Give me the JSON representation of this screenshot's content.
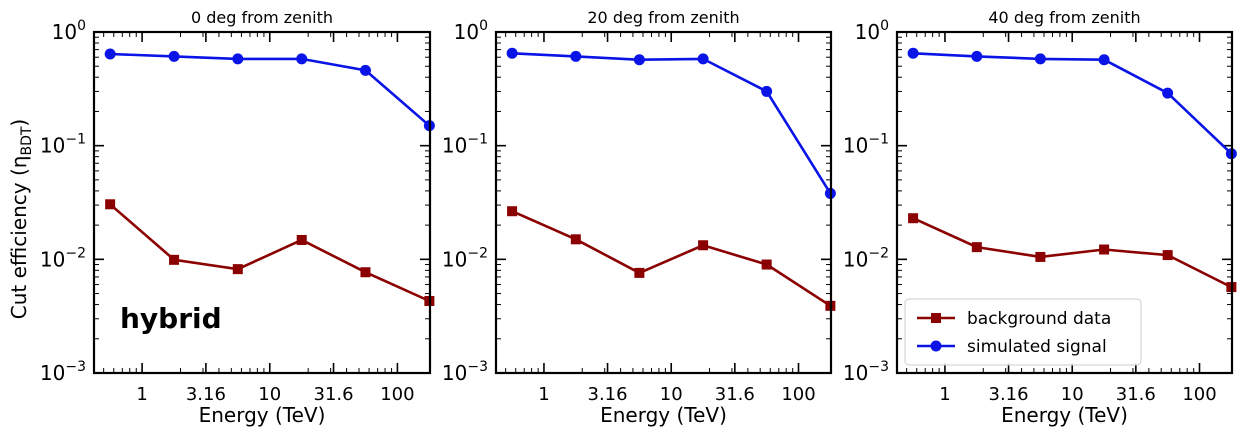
{
  "figure": {
    "ylabel_main": "Cut efficiency (η",
    "ylabel_sub": "BDT",
    "ylabel_close": ")",
    "annotation": "hybrid"
  },
  "chart_data": [
    {
      "type": "line",
      "title": "0 deg from zenith",
      "xlabel": "Energy (TeV)",
      "ylabel": "Cut efficiency (ηBDT)",
      "xscale": "log",
      "yscale": "log",
      "xlim": [
        0.42,
        180
      ],
      "ylim": [
        0.001,
        1
      ],
      "xticks": [
        1,
        3.16,
        10,
        31.6,
        100
      ],
      "xtick_labels": [
        "1",
        "3.16",
        "10",
        "31.6",
        "100"
      ],
      "yticks": [
        0.001,
        0.01,
        0.1,
        1
      ],
      "ytick_labels": [
        [
          "10",
          "−3"
        ],
        [
          "10",
          "−2"
        ],
        [
          "10",
          "−1"
        ],
        [
          "10",
          "0"
        ]
      ],
      "x": [
        0.562,
        1.78,
        5.62,
        17.8,
        56.2,
        178
      ],
      "series": [
        {
          "name": "background data",
          "color": "#8b0000",
          "marker": "square",
          "values": [
            0.0305,
            0.0099,
            0.0082,
            0.0148,
            0.0077,
            0.0043
          ]
        },
        {
          "name": "simulated signal",
          "color": "#0a14e6",
          "marker": "circle",
          "values": [
            0.64,
            0.61,
            0.58,
            0.58,
            0.46,
            0.15
          ]
        }
      ],
      "legend": false,
      "grid": false
    },
    {
      "type": "line",
      "title": "20 deg from zenith",
      "xlabel": "Energy (TeV)",
      "ylabel": "",
      "xscale": "log",
      "yscale": "log",
      "xlim": [
        0.42,
        180
      ],
      "ylim": [
        0.001,
        1
      ],
      "xticks": [
        1,
        3.16,
        10,
        31.6,
        100
      ],
      "xtick_labels": [
        "1",
        "3.16",
        "10",
        "31.6",
        "100"
      ],
      "yticks": [
        0.001,
        0.01,
        0.1,
        1
      ],
      "ytick_labels": [
        [
          "10",
          "−3"
        ],
        [
          "10",
          "−2"
        ],
        [
          "10",
          "−1"
        ],
        [
          "10",
          "0"
        ]
      ],
      "x": [
        0.562,
        1.78,
        5.62,
        17.8,
        56.2,
        178
      ],
      "series": [
        {
          "name": "background data",
          "color": "#8b0000",
          "marker": "square",
          "values": [
            0.0265,
            0.015,
            0.0076,
            0.0133,
            0.009,
            0.0039
          ]
        },
        {
          "name": "simulated signal",
          "color": "#0a14e6",
          "marker": "circle",
          "values": [
            0.65,
            0.61,
            0.57,
            0.58,
            0.3,
            0.038
          ]
        }
      ],
      "legend": false,
      "grid": false
    },
    {
      "type": "line",
      "title": "40 deg from zenith",
      "xlabel": "Energy (TeV)",
      "ylabel": "",
      "xscale": "log",
      "yscale": "log",
      "xlim": [
        0.42,
        180
      ],
      "ylim": [
        0.001,
        1
      ],
      "xticks": [
        1,
        3.16,
        10,
        31.6,
        100
      ],
      "xtick_labels": [
        "1",
        "3.16",
        "10",
        "31.6",
        "100"
      ],
      "yticks": [
        0.001,
        0.01,
        0.1,
        1
      ],
      "ytick_labels": [
        [
          "10",
          "−3"
        ],
        [
          "10",
          "−2"
        ],
        [
          "10",
          "−1"
        ],
        [
          "10",
          "0"
        ]
      ],
      "x": [
        0.562,
        1.78,
        5.62,
        17.8,
        56.2,
        178
      ],
      "series": [
        {
          "name": "background data",
          "color": "#8b0000",
          "marker": "square",
          "values": [
            0.023,
            0.0128,
            0.0105,
            0.0122,
            0.0109,
            0.0057
          ]
        },
        {
          "name": "simulated signal",
          "color": "#0a14e6",
          "marker": "circle",
          "values": [
            0.65,
            0.61,
            0.58,
            0.57,
            0.29,
            0.085
          ]
        }
      ],
      "legend": true,
      "legend_position": "lower-left",
      "grid": false
    }
  ]
}
